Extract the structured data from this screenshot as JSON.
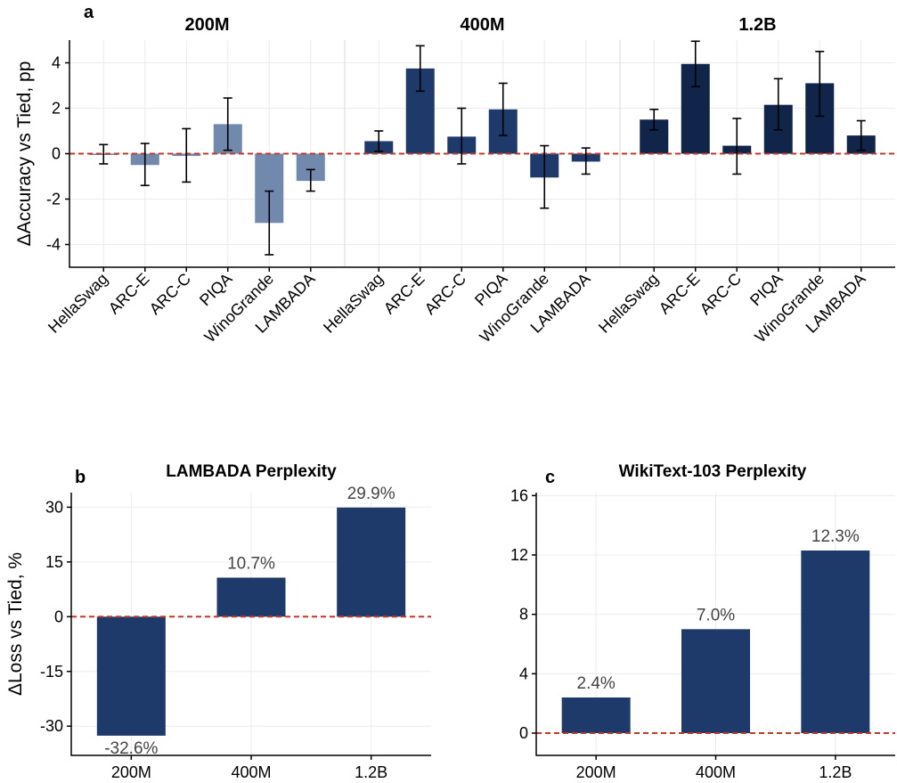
{
  "chart_data": [
    {
      "panel": "a",
      "type": "bar",
      "ylabel": "ΔAccuracy vs Tied, pp",
      "ylim": [
        -5,
        5
      ],
      "yticks": [
        -4,
        -2,
        0,
        2,
        4
      ],
      "ytick_labels": [
        "-4",
        "-2",
        "0",
        "2",
        "4"
      ],
      "grid": true,
      "reference_line": 0,
      "categories": [
        "HellaSwag",
        "ARC-E",
        "ARC-C",
        "PIQA",
        "WinoGrande",
        "LAMBADA"
      ],
      "groups": [
        {
          "name": "200M",
          "color": "#7189ac",
          "values": [
            -0.05,
            -0.5,
            -0.1,
            1.3,
            -3.05,
            -1.2
          ],
          "err_low": [
            -0.45,
            -1.4,
            -1.25,
            0.15,
            -4.45,
            -1.65
          ],
          "err_high": [
            0.4,
            0.45,
            1.1,
            2.45,
            -1.65,
            -0.7
          ]
        },
        {
          "name": "400M",
          "color": "#1e3a6a",
          "values": [
            0.55,
            3.75,
            0.75,
            1.95,
            -1.05,
            -0.35
          ],
          "err_low": [
            0.1,
            2.75,
            -0.45,
            0.8,
            -2.4,
            -0.9
          ],
          "err_high": [
            1.0,
            4.75,
            2.0,
            3.1,
            0.35,
            0.25
          ]
        },
        {
          "name": "1.2B",
          "color": "#11254a",
          "values": [
            1.5,
            3.95,
            0.35,
            2.15,
            3.1,
            0.8
          ],
          "err_low": [
            1.05,
            2.95,
            -0.9,
            1.05,
            1.65,
            0.15
          ],
          "err_high": [
            1.95,
            4.95,
            1.55,
            3.3,
            4.5,
            1.45
          ]
        }
      ]
    },
    {
      "panel": "b",
      "type": "bar",
      "title": "LAMBADA Perplexity",
      "ylabel": "ΔLoss vs Tied, %",
      "ylim": [
        -38,
        34
      ],
      "yticks": [
        -30,
        -15,
        0,
        15,
        30
      ],
      "ytick_labels": [
        "-30",
        "-15",
        "0",
        "15",
        "30"
      ],
      "grid": true,
      "reference_line": 0,
      "color": "#1e3a6a",
      "categories": [
        "200M",
        "400M",
        "1.2B"
      ],
      "values": [
        -32.6,
        10.7,
        29.9
      ],
      "data_labels": [
        "-32.6%",
        "10.7%",
        "29.9%"
      ]
    },
    {
      "panel": "c",
      "type": "bar",
      "title": "WikiText-103 Perplexity",
      "ylabel": "",
      "ylim": [
        -1.5,
        16.2
      ],
      "yticks": [
        0,
        4,
        8,
        12,
        16
      ],
      "ytick_labels": [
        "0",
        "4",
        "8",
        "12",
        "16"
      ],
      "grid": true,
      "reference_line": 0,
      "color": "#1e3a6a",
      "categories": [
        "200M",
        "400M",
        "1.2B"
      ],
      "values": [
        2.4,
        7.0,
        12.3
      ],
      "data_labels": [
        "2.4%",
        "7.0%",
        "12.3%"
      ]
    }
  ]
}
